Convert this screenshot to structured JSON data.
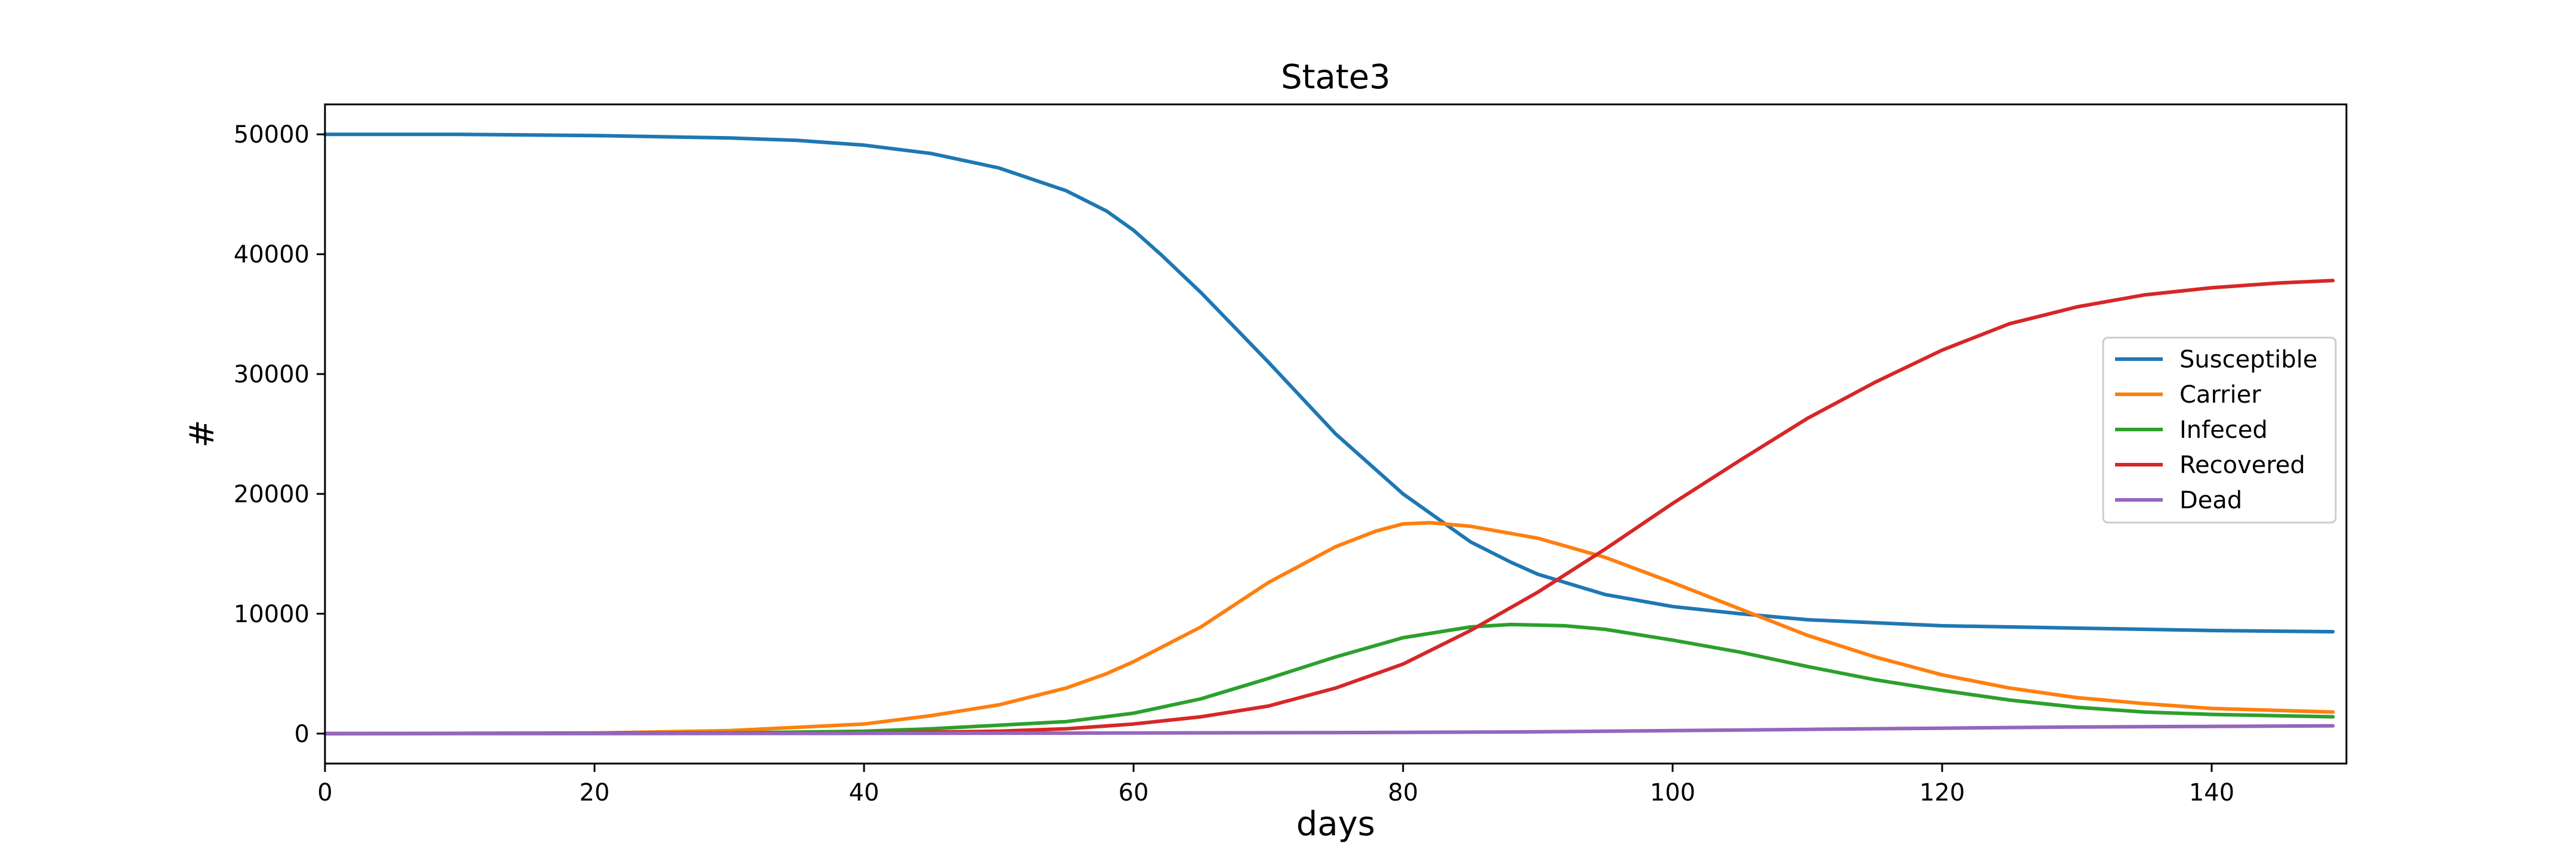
{
  "chart_data": {
    "type": "line",
    "title": "State3",
    "xlabel": "days",
    "ylabel": "#",
    "xlim": [
      0,
      150
    ],
    "ylim": [
      -2500,
      52500
    ],
    "xticks": [
      0,
      20,
      40,
      60,
      80,
      100,
      120,
      140
    ],
    "yticks": [
      0,
      10000,
      20000,
      30000,
      40000,
      50000
    ],
    "grid": false,
    "legend_position": "center-right",
    "series": [
      {
        "name": "Susceptible",
        "color": "#1f77b4",
        "points": [
          [
            0,
            50000
          ],
          [
            10,
            50000
          ],
          [
            20,
            49900
          ],
          [
            30,
            49700
          ],
          [
            35,
            49500
          ],
          [
            40,
            49100
          ],
          [
            45,
            48400
          ],
          [
            50,
            47200
          ],
          [
            55,
            45300
          ],
          [
            58,
            43600
          ],
          [
            60,
            42000
          ],
          [
            62,
            40000
          ],
          [
            65,
            36800
          ],
          [
            70,
            31000
          ],
          [
            75,
            25000
          ],
          [
            80,
            20000
          ],
          [
            85,
            16000
          ],
          [
            88,
            14300
          ],
          [
            90,
            13300
          ],
          [
            95,
            11600
          ],
          [
            100,
            10600
          ],
          [
            105,
            10000
          ],
          [
            110,
            9500
          ],
          [
            120,
            9000
          ],
          [
            130,
            8800
          ],
          [
            140,
            8600
          ],
          [
            149,
            8500
          ]
        ]
      },
      {
        "name": "Carrier",
        "color": "#ff7f0e",
        "points": [
          [
            0,
            0
          ],
          [
            20,
            50
          ],
          [
            30,
            250
          ],
          [
            40,
            800
          ],
          [
            45,
            1500
          ],
          [
            50,
            2400
          ],
          [
            55,
            3800
          ],
          [
            58,
            5000
          ],
          [
            60,
            6000
          ],
          [
            65,
            8900
          ],
          [
            70,
            12600
          ],
          [
            75,
            15600
          ],
          [
            78,
            16900
          ],
          [
            80,
            17500
          ],
          [
            82,
            17600
          ],
          [
            85,
            17300
          ],
          [
            90,
            16300
          ],
          [
            95,
            14700
          ],
          [
            100,
            12600
          ],
          [
            105,
            10400
          ],
          [
            110,
            8200
          ],
          [
            115,
            6400
          ],
          [
            120,
            4900
          ],
          [
            125,
            3800
          ],
          [
            130,
            3000
          ],
          [
            135,
            2500
          ],
          [
            140,
            2100
          ],
          [
            149,
            1800
          ]
        ]
      },
      {
        "name": "Infeced",
        "color": "#2ca02c",
        "points": [
          [
            0,
            0
          ],
          [
            30,
            50
          ],
          [
            40,
            200
          ],
          [
            45,
            400
          ],
          [
            50,
            700
          ],
          [
            55,
            1000
          ],
          [
            60,
            1700
          ],
          [
            65,
            2900
          ],
          [
            70,
            4600
          ],
          [
            75,
            6400
          ],
          [
            80,
            8000
          ],
          [
            85,
            8900
          ],
          [
            88,
            9100
          ],
          [
            92,
            9000
          ],
          [
            95,
            8700
          ],
          [
            100,
            7800
          ],
          [
            105,
            6800
          ],
          [
            110,
            5600
          ],
          [
            115,
            4500
          ],
          [
            120,
            3600
          ],
          [
            125,
            2800
          ],
          [
            130,
            2200
          ],
          [
            135,
            1800
          ],
          [
            140,
            1600
          ],
          [
            149,
            1400
          ]
        ]
      },
      {
        "name": "Recovered",
        "color": "#d62728",
        "points": [
          [
            0,
            0
          ],
          [
            40,
            50
          ],
          [
            50,
            200
          ],
          [
            55,
            400
          ],
          [
            60,
            800
          ],
          [
            65,
            1400
          ],
          [
            70,
            2300
          ],
          [
            75,
            3800
          ],
          [
            80,
            5800
          ],
          [
            85,
            8600
          ],
          [
            90,
            11800
          ],
          [
            95,
            15400
          ],
          [
            100,
            19200
          ],
          [
            105,
            22800
          ],
          [
            110,
            26300
          ],
          [
            115,
            29300
          ],
          [
            120,
            32000
          ],
          [
            125,
            34200
          ],
          [
            130,
            35600
          ],
          [
            135,
            36600
          ],
          [
            140,
            37200
          ],
          [
            145,
            37600
          ],
          [
            149,
            37800
          ]
        ]
      },
      {
        "name": "Dead",
        "color": "#9467bd",
        "points": [
          [
            0,
            0
          ],
          [
            20,
            0
          ],
          [
            40,
            20
          ],
          [
            60,
            50
          ],
          [
            80,
            100
          ],
          [
            90,
            150
          ],
          [
            100,
            250
          ],
          [
            110,
            350
          ],
          [
            120,
            450
          ],
          [
            130,
            550
          ],
          [
            140,
            600
          ],
          [
            149,
            650
          ]
        ]
      }
    ]
  }
}
